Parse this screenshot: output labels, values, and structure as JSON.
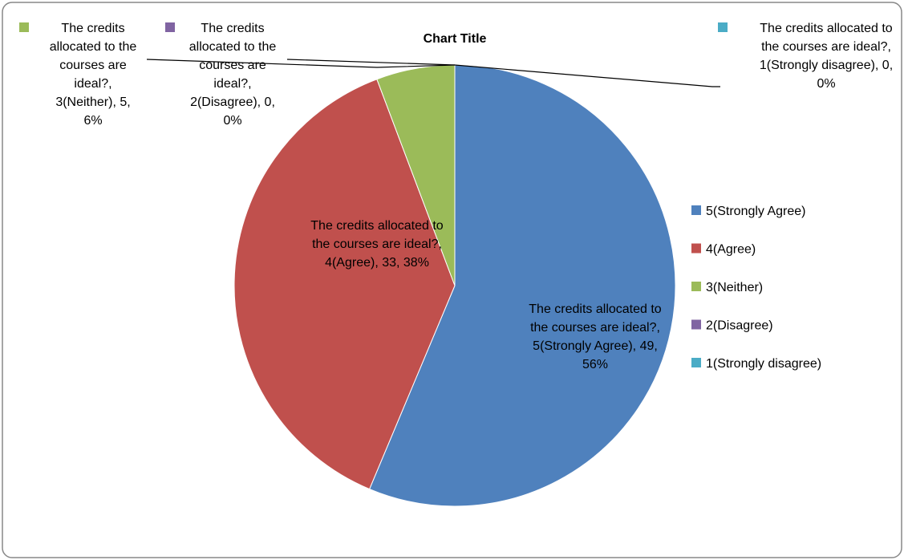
{
  "chart_data": {
    "type": "pie",
    "title": "Chart Title",
    "categories": [
      "5(Strongly Agree)",
      "4(Agree)",
      "3(Neither)",
      "2(Disagree)",
      "1(Strongly disagree)"
    ],
    "values": [
      49,
      33,
      5,
      0,
      0
    ],
    "value_labels": [
      "The credits allocated to the courses are ideal?, 5(Strongly Agree), 49, 56%",
      "The credits allocated to the courses are ideal?, 4(Agree), 33, 38%",
      "The credits allocated to the courses are ideal?, 3(Neither), 5, 6%",
      "The credits allocated to the courses are ideal?, 2(Disagree), 0, 0%",
      "The credits allocated to the courses are ideal?, 1(Strongly disagree), 0, 0%"
    ],
    "colors": [
      "#4f81bd",
      "#c0504d",
      "#9bbb59",
      "#8064a2",
      "#4bacc6"
    ],
    "legend": "right"
  }
}
